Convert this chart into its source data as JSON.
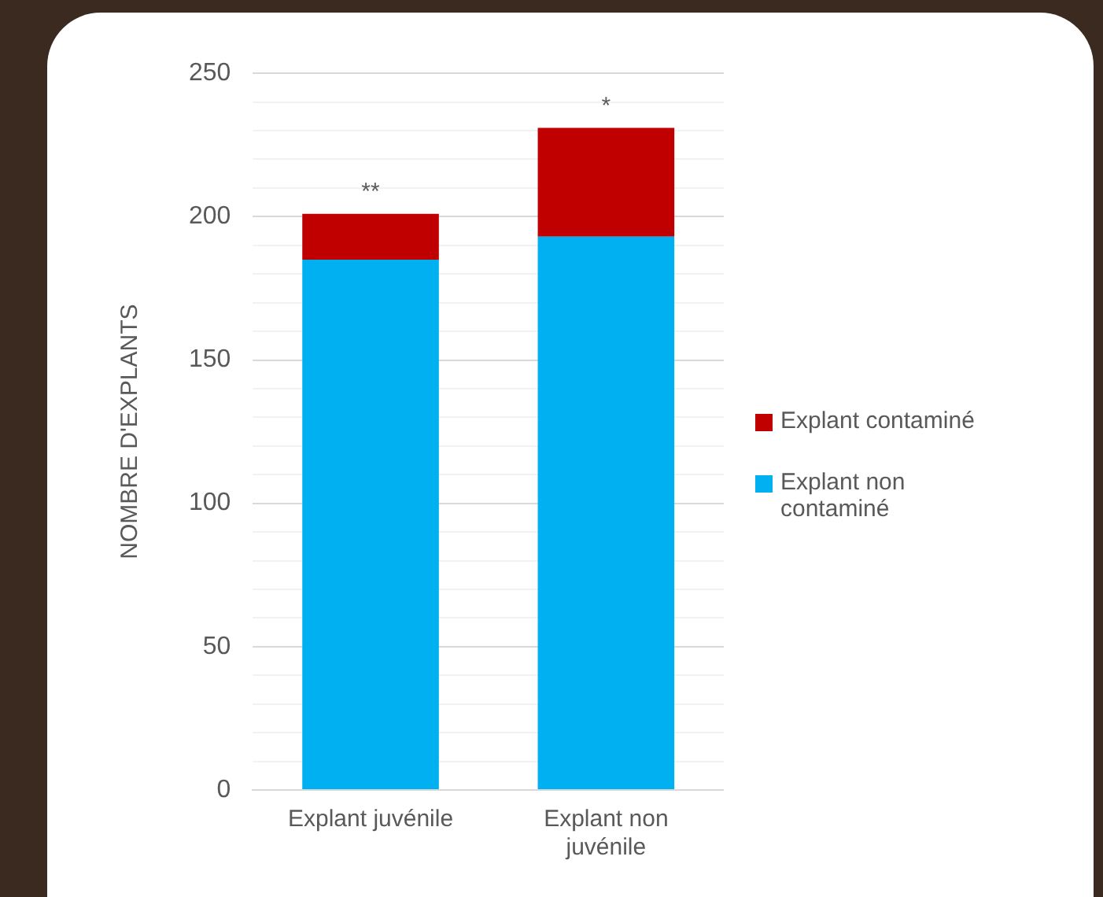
{
  "chart_data": {
    "type": "bar",
    "stacked": true,
    "ylabel": "NOMBRE D'EXPLANTS",
    "categories": [
      "Explant juvénile",
      "Explant non juvénile"
    ],
    "series": [
      {
        "name": "Explant non contaminé",
        "color": "#00b0f0",
        "values": [
          185,
          193
        ]
      },
      {
        "name": "Explant contaminé",
        "color": "#c00000",
        "values": [
          16,
          38
        ]
      }
    ],
    "ylim": [
      0,
      250
    ],
    "yticks": [
      0,
      {
        "value": 10,
        "label": null
      },
      {
        "value": 20,
        "label": null
      },
      {
        "value": 30,
        "label": null
      },
      {
        "value": 40,
        "label": null
      },
      50,
      {
        "value": 60,
        "label": null
      },
      {
        "value": 70,
        "label": null
      },
      {
        "value": 80,
        "label": null
      },
      {
        "value": 90,
        "label": null
      },
      100,
      {
        "value": 110,
        "label": null
      },
      {
        "value": 120,
        "label": null
      },
      {
        "value": 130,
        "label": null
      },
      {
        "value": 140,
        "label": null
      },
      150,
      {
        "value": 160,
        "label": null
      },
      {
        "value": 170,
        "label": null
      },
      {
        "value": 180,
        "label": null
      },
      {
        "value": 190,
        "label": null
      },
      200,
      {
        "value": 210,
        "label": null
      },
      {
        "value": 220,
        "label": null
      },
      {
        "value": 230,
        "label": null
      },
      {
        "value": 240,
        "label": null
      },
      250
    ],
    "grid": "y",
    "legend": "right",
    "annotations": [
      {
        "text": "**",
        "x": "Explant juvénile",
        "y": 201
      },
      {
        "text": "*",
        "x": "Explant non juvénile",
        "y": 231
      }
    ]
  }
}
